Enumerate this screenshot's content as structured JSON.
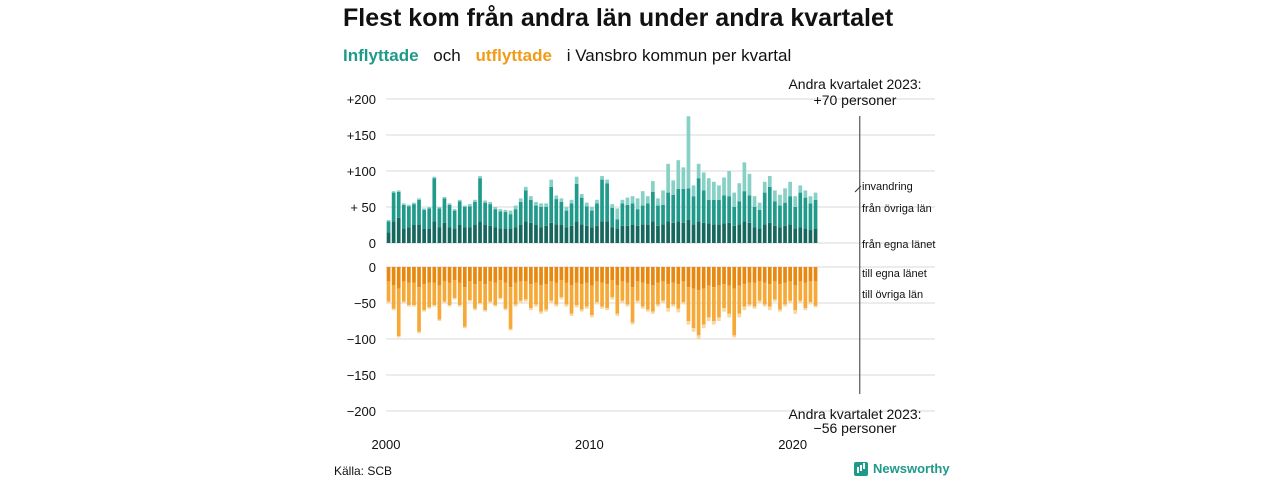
{
  "title": "Flest kom från andra län under andra kvartalet",
  "subtitle": {
    "in_label": "Inflyttade",
    "and_label": "och",
    "out_label": "utflyttade",
    "rest": "i Vansbro kommun per kvartal"
  },
  "source": "Källa: SCB",
  "brand": "Newsworthy",
  "colors": {
    "in_local": "#16675d",
    "in_other": "#1f9a8b",
    "in_immigration": "#86d0c6",
    "out_local": "#e8880e",
    "out_other": "#f6a936",
    "out_emigration": "#fad7a0",
    "grid": "#d9d9d9"
  },
  "chart_data": {
    "type": "bar",
    "x_ticks": [
      "2000",
      "2010",
      "2020"
    ],
    "x_range": [
      2000,
      2027
    ],
    "top_panel": {
      "y_ticks": [
        "+200",
        "+150",
        "+100",
        "+ 50",
        "0"
      ],
      "ylim": [
        0,
        200
      ],
      "series_labels": [
        "invandring",
        "från övriga län",
        "från egna länet"
      ]
    },
    "bottom_panel": {
      "y_ticks": [
        "0",
        "−50",
        "−100",
        "−150",
        "−200"
      ],
      "ylim": [
        -200,
        0
      ],
      "series_labels": [
        "till egna länet",
        "till övriga län"
      ]
    },
    "annotation_top": {
      "line1": "Andra kvartalet 2023:",
      "line2": "+70 personer",
      "x": 2023.25
    },
    "annotation_bottom": {
      "line1": "Andra kvartalet 2023:",
      "line2": "−56 personer",
      "x": 2023.25
    },
    "inflows_total": [
      32,
      72,
      73,
      55,
      53,
      56,
      62,
      48,
      50,
      92,
      50,
      64,
      55,
      47,
      60,
      52,
      54,
      60,
      93,
      59,
      57,
      50,
      47,
      46,
      45,
      52,
      62,
      78,
      65,
      57,
      55,
      55,
      88,
      66,
      62,
      50,
      60,
      92,
      68,
      56,
      50,
      60,
      93,
      88,
      54,
      48,
      60,
      63,
      65,
      62,
      72,
      65,
      86,
      62,
      73,
      110,
      87,
      115,
      105,
      176,
      80,
      110,
      98,
      90,
      85,
      80,
      91,
      100,
      70,
      83,
      112,
      96,
      65,
      56,
      85,
      93,
      73,
      67,
      76,
      85,
      65,
      80,
      73,
      65,
      70
    ],
    "inflows_immigration": [
      2,
      2,
      2,
      2,
      2,
      2,
      2,
      2,
      2,
      2,
      2,
      2,
      2,
      2,
      2,
      2,
      3,
      3,
      3,
      3,
      3,
      3,
      3,
      3,
      5,
      5,
      5,
      5,
      5,
      5,
      5,
      5,
      10,
      5,
      5,
      5,
      5,
      10,
      5,
      5,
      5,
      5,
      5,
      5,
      5,
      15,
      5,
      10,
      10,
      15,
      20,
      10,
      15,
      10,
      20,
      40,
      20,
      40,
      30,
      100,
      15,
      20,
      25,
      30,
      25,
      20,
      25,
      35,
      20,
      25,
      40,
      30,
      15,
      10,
      15,
      15,
      15,
      15,
      20,
      20,
      15,
      10,
      10,
      10,
      10
    ],
    "inflows_local": [
      15,
      30,
      35,
      20,
      22,
      25,
      25,
      20,
      20,
      30,
      22,
      28,
      22,
      20,
      25,
      22,
      22,
      25,
      30,
      25,
      24,
      22,
      20,
      20,
      20,
      22,
      25,
      30,
      28,
      25,
      22,
      24,
      28,
      26,
      25,
      22,
      24,
      30,
      26,
      24,
      22,
      24,
      30,
      30,
      22,
      20,
      24,
      24,
      25,
      24,
      26,
      25,
      30,
      24,
      26,
      30,
      28,
      30,
      28,
      32,
      26,
      30,
      28,
      27,
      26,
      25,
      27,
      28,
      24,
      26,
      30,
      28,
      22,
      20,
      26,
      28,
      24,
      22,
      24,
      26,
      20,
      22,
      20,
      18,
      20
    ],
    "outflows_total": [
      -50,
      -60,
      -98,
      -50,
      -55,
      -55,
      -92,
      -62,
      -58,
      -55,
      -75,
      -50,
      -55,
      -45,
      -55,
      -85,
      -48,
      -60,
      -52,
      -62,
      -50,
      -55,
      -45,
      -60,
      -88,
      -55,
      -50,
      -48,
      -60,
      -55,
      -65,
      -62,
      -50,
      -55,
      -45,
      -55,
      -68,
      -56,
      -62,
      -58,
      -70,
      -52,
      -58,
      -60,
      -45,
      -68,
      -50,
      -55,
      -80,
      -50,
      -58,
      -62,
      -65,
      -55,
      -50,
      -62,
      -55,
      -63,
      -52,
      -80,
      -90,
      -100,
      -85,
      -75,
      -80,
      -75,
      -62,
      -70,
      -98,
      -70,
      -60,
      -55,
      -58,
      -50,
      -55,
      -60,
      -48,
      -62,
      -55,
      -50,
      -65,
      -50,
      -60,
      -52,
      -56
    ],
    "outflows_emigration": [
      -2,
      -2,
      -2,
      -2,
      -2,
      -2,
      -2,
      -2,
      -2,
      -2,
      -2,
      -2,
      -2,
      -2,
      -2,
      -2,
      -2,
      -2,
      -2,
      -2,
      -2,
      -2,
      -2,
      -2,
      -2,
      -3,
      -3,
      -3,
      -3,
      -3,
      -3,
      -3,
      -3,
      -3,
      -3,
      -3,
      -3,
      -3,
      -3,
      -3,
      -3,
      -3,
      -3,
      -3,
      -3,
      -3,
      -3,
      -3,
      -3,
      -3,
      -3,
      -3,
      -3,
      -3,
      -3,
      -5,
      -3,
      -5,
      -3,
      -5,
      -5,
      -5,
      -5,
      -5,
      -5,
      -5,
      -5,
      -5,
      -3,
      -5,
      -5,
      -3,
      -3,
      -3,
      -3,
      -5,
      -3,
      -3,
      -3,
      -3,
      -5,
      -3,
      -3,
      -3,
      -2
    ],
    "outflows_local": [
      -20,
      -25,
      -30,
      -20,
      -22,
      -22,
      -28,
      -24,
      -22,
      -22,
      -26,
      -20,
      -22,
      -18,
      -22,
      -28,
      -20,
      -24,
      -20,
      -24,
      -20,
      -22,
      -18,
      -22,
      -28,
      -22,
      -20,
      -20,
      -24,
      -22,
      -25,
      -24,
      -20,
      -22,
      -18,
      -22,
      -25,
      -22,
      -24,
      -22,
      -26,
      -20,
      -22,
      -24,
      -18,
      -25,
      -20,
      -22,
      -28,
      -20,
      -22,
      -24,
      -25,
      -22,
      -20,
      -24,
      -22,
      -24,
      -20,
      -28,
      -30,
      -32,
      -30,
      -26,
      -28,
      -26,
      -24,
      -26,
      -30,
      -26,
      -24,
      -22,
      -22,
      -20,
      -22,
      -24,
      -20,
      -24,
      -22,
      -20,
      -25,
      -20,
      -22,
      -20,
      -20
    ]
  }
}
